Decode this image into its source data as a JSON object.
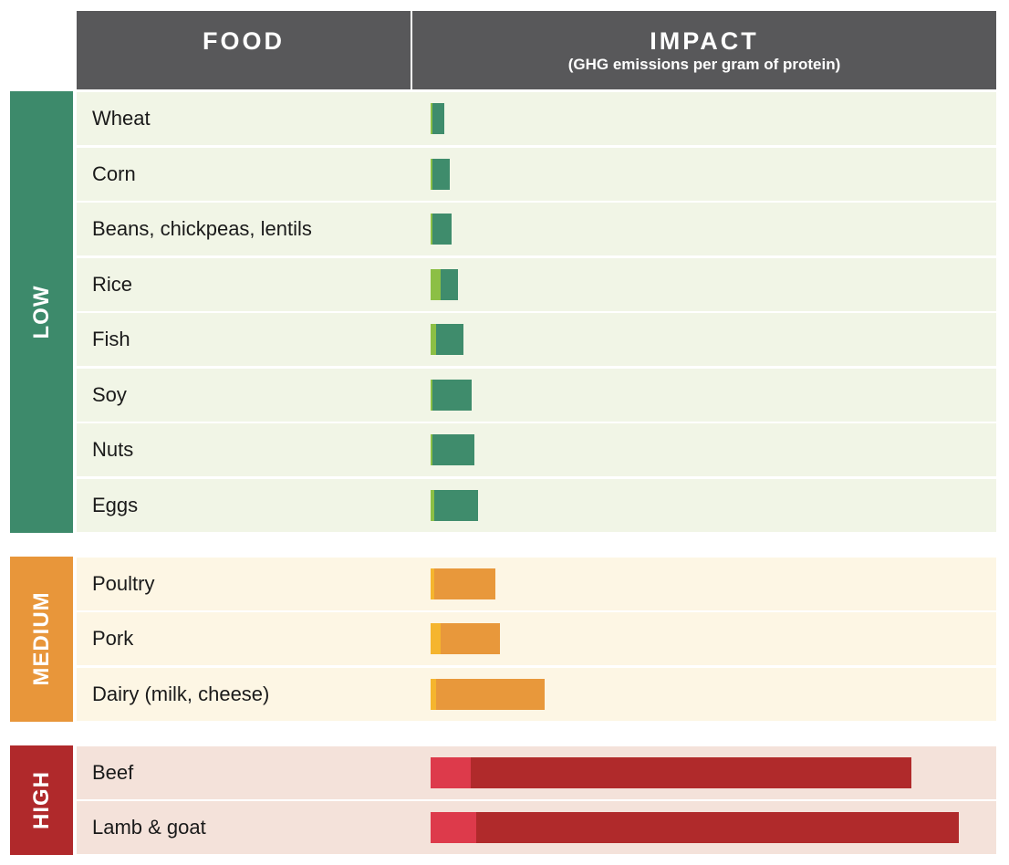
{
  "header": {
    "food": "FOOD",
    "impact": "IMPACT",
    "impact_sub": "(GHG emissions per gram of protein)"
  },
  "colors": {
    "header_bg": "#58585a",
    "low": {
      "cat": "#3d8a6b",
      "row": "#f1f5e6",
      "bar": "#3f8c6c",
      "accent": "#8cbf45"
    },
    "medium": {
      "cat": "#e8963a",
      "row": "#fdf6e4",
      "bar": "#e8983b",
      "accent": "#f5b52e"
    },
    "high": {
      "cat": "#b0292b",
      "row": "#f4e2da",
      "bar": "#b02a2b",
      "accent": "#dd3a4b"
    }
  },
  "chart_data": {
    "type": "bar",
    "orientation": "horizontal",
    "stacked": true,
    "title": "",
    "xlabel": "IMPACT (GHG emissions per gram of protein)",
    "ylabel": "FOOD",
    "xlim": [
      0,
      100
    ],
    "grid": false,
    "legend": "none",
    "groups": [
      {
        "name": "LOW",
        "key": "low",
        "items": [
          {
            "label": "Wheat",
            "accent": 0.4,
            "main": 2.3
          },
          {
            "label": "Corn",
            "accent": 0.4,
            "main": 3.5
          },
          {
            "label": "Beans, chickpeas, lentils",
            "accent": 0.4,
            "main": 3.8
          },
          {
            "label": "Rice",
            "accent": 2.0,
            "main": 3.4
          },
          {
            "label": "Fish",
            "accent": 1.1,
            "main": 5.4
          },
          {
            "label": "Soy",
            "accent": 0.4,
            "main": 7.7
          },
          {
            "label": "Nuts",
            "accent": 0.4,
            "main": 8.4
          },
          {
            "label": "Eggs",
            "accent": 0.7,
            "main": 8.7
          }
        ]
      },
      {
        "name": "MEDIUM",
        "key": "medium",
        "items": [
          {
            "label": "Poultry",
            "accent": 0.7,
            "main": 12.3
          },
          {
            "label": "Pork",
            "accent": 2.0,
            "main": 11.8
          },
          {
            "label": "Dairy (milk, cheese)",
            "accent": 1.1,
            "main": 21.6
          }
        ]
      },
      {
        "name": "HIGH",
        "key": "high",
        "items": [
          {
            "label": "Beef",
            "accent": 8.0,
            "main": 87.9
          },
          {
            "label": "Lamb & goat",
            "accent": 9.1,
            "main": 96.2
          }
        ]
      }
    ]
  }
}
